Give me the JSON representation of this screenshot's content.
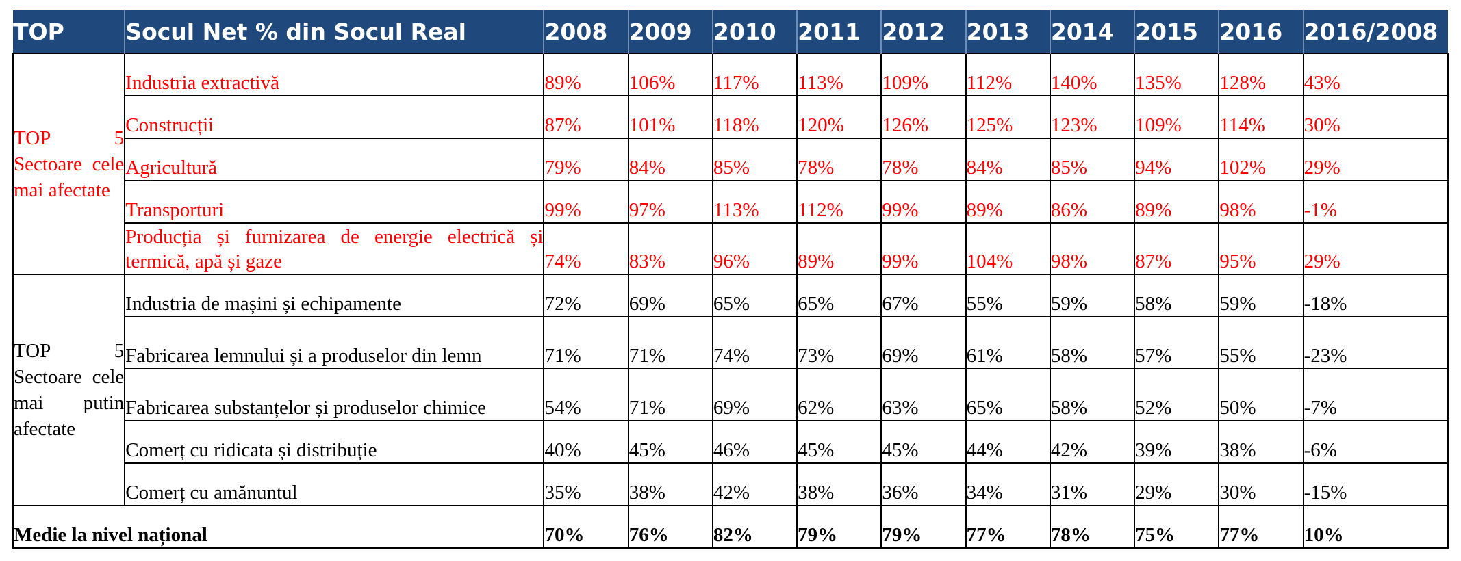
{
  "header": [
    "TOP",
    "Socul Net % din Socul Real",
    "2008",
    "2009",
    "2010",
    "2011",
    "2012",
    "2013",
    "2014",
    "2015",
    "2016",
    "2016/2008"
  ],
  "groups": [
    {
      "label": "TOP 5 Sectoare cele mai afectate",
      "rows": [
        {
          "sector": "Industria extractivă",
          "values": [
            "89%",
            "106%",
            "117%",
            "113%",
            "109%",
            "112%",
            "140%",
            "135%",
            "128%",
            "43%"
          ]
        },
        {
          "sector": "Construcții",
          "values": [
            "87%",
            "101%",
            "118%",
            "120%",
            "126%",
            "125%",
            "123%",
            "109%",
            "114%",
            "30%"
          ]
        },
        {
          "sector": "Agricultură",
          "values": [
            "79%",
            "84%",
            "85%",
            "78%",
            "78%",
            "84%",
            "85%",
            "94%",
            "102%",
            "29%"
          ]
        },
        {
          "sector": "Transporturi",
          "values": [
            "99%",
            "97%",
            "113%",
            "112%",
            "99%",
            "89%",
            "86%",
            "89%",
            "98%",
            "-1%"
          ]
        },
        {
          "sector": "Producția și furnizarea de energie electrică și termică, apă și gaze",
          "values": [
            "74%",
            "83%",
            "96%",
            "89%",
            "99%",
            "104%",
            "98%",
            "87%",
            "95%",
            "29%"
          ]
        }
      ]
    },
    {
      "label": "TOP 5 Sectoare cele mai putin afectate",
      "rows": [
        {
          "sector": "Industria de mașini și echipamente",
          "values": [
            "72%",
            "69%",
            "65%",
            "65%",
            "67%",
            "55%",
            "59%",
            "58%",
            "59%",
            "-18%"
          ]
        },
        {
          "sector": "Fabricarea lemnului și a produselor din lemn",
          "values": [
            "71%",
            "71%",
            "74%",
            "73%",
            "69%",
            "61%",
            "58%",
            "57%",
            "55%",
            "-23%"
          ]
        },
        {
          "sector": "Fabricarea substanțelor și produselor chimice",
          "values": [
            "54%",
            "71%",
            "69%",
            "62%",
            "63%",
            "65%",
            "58%",
            "52%",
            "50%",
            "-7%"
          ]
        },
        {
          "sector": "Comerț cu ridicata și distribuție",
          "values": [
            "40%",
            "45%",
            "46%",
            "45%",
            "45%",
            "44%",
            "42%",
            "39%",
            "38%",
            "-6%"
          ]
        },
        {
          "sector": "Comerț cu amănuntul",
          "values": [
            "35%",
            "38%",
            "42%",
            "38%",
            "36%",
            "34%",
            "31%",
            "29%",
            "30%",
            "-15%"
          ]
        }
      ]
    }
  ],
  "total": {
    "label": "Medie la nivel național",
    "values": [
      "70%",
      "76%",
      "82%",
      "79%",
      "79%",
      "77%",
      "78%",
      "75%",
      "77%",
      "10%"
    ]
  },
  "colors": {
    "header_bg": "#1f497d",
    "header_text": "#ffffff",
    "affected_text": "#ff0000",
    "border": "#000000"
  }
}
